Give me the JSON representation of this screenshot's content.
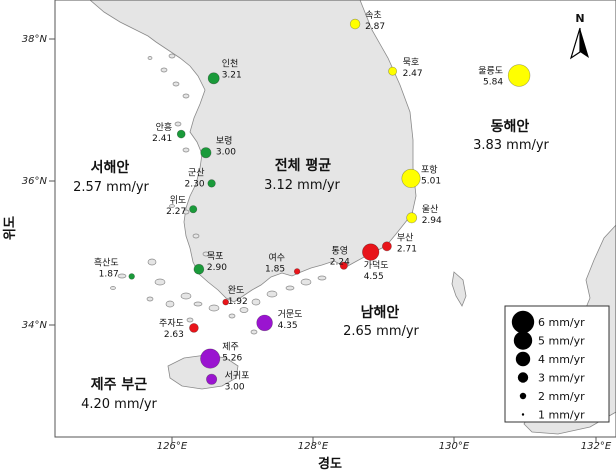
{
  "axes": {
    "x_title": "경도",
    "y_title": "위도",
    "x_ticks": [
      "126°E",
      "128°E",
      "130°E",
      "132°E"
    ],
    "y_ticks": [
      "38°N",
      "36°N",
      "34°N"
    ]
  },
  "north_arrow": {
    "letter": "N",
    "icon": "north-arrow-icon"
  },
  "regions": [
    {
      "id": "west",
      "name": "서해안",
      "rate": "2.57 mm/yr"
    },
    {
      "id": "total",
      "name": "전체 평균",
      "rate": "3.12 mm/yr"
    },
    {
      "id": "east",
      "name": "동해안",
      "rate": "3.83 mm/yr"
    },
    {
      "id": "south",
      "name": "남해안",
      "rate": "2.65 mm/yr"
    },
    {
      "id": "jeju",
      "name": "제주 부근",
      "rate": "4.20 mm/yr"
    }
  ],
  "colors": {
    "east": "#ffff00",
    "west": "#1a9a3a",
    "south": "#e8141a",
    "jeju": "#9a14d0",
    "land": "#e5e5e5",
    "sea": "#ffffff"
  },
  "stations": [
    {
      "name": "속초",
      "value": "2.87",
      "rate": 2.87,
      "region": "east",
      "lon": 128.59,
      "lat": 38.21
    },
    {
      "name": "묵호",
      "value": "2.47",
      "rate": 2.47,
      "region": "east",
      "lon": 129.12,
      "lat": 37.55
    },
    {
      "name": "울릉도",
      "value": "5.84",
      "rate": 5.84,
      "region": "east",
      "lon": 130.91,
      "lat": 37.49
    },
    {
      "name": "포항",
      "value": "5.01",
      "rate": 5.01,
      "region": "east",
      "lon": 129.38,
      "lat": 36.05
    },
    {
      "name": "울산",
      "value": "2.94",
      "rate": 2.94,
      "region": "east",
      "lon": 129.39,
      "lat": 35.5
    },
    {
      "name": "부산",
      "value": "2.71",
      "rate": 2.71,
      "region": "south",
      "lon": 129.04,
      "lat": 35.1
    },
    {
      "name": "가덕도",
      "value": "4.55",
      "rate": 4.55,
      "region": "south",
      "lon": 128.81,
      "lat": 35.02
    },
    {
      "name": "통영",
      "value": "2.24",
      "rate": 2.24,
      "region": "south",
      "lon": 128.43,
      "lat": 34.83
    },
    {
      "name": "여수",
      "value": "1.85",
      "rate": 1.85,
      "region": "south",
      "lon": 127.77,
      "lat": 34.75
    },
    {
      "name": "완도",
      "value": "1.92",
      "rate": 1.92,
      "region": "south",
      "lon": 126.76,
      "lat": 34.32
    },
    {
      "name": "거문도",
      "value": "4.35",
      "rate": 4.35,
      "region": "jeju",
      "lon": 127.31,
      "lat": 34.03
    },
    {
      "name": "주자도",
      "value": "2.63",
      "rate": 2.63,
      "region": "south",
      "lon": 126.31,
      "lat": 33.96
    },
    {
      "name": "제주",
      "value": "5.26",
      "rate": 5.26,
      "region": "jeju",
      "lon": 126.54,
      "lat": 33.53
    },
    {
      "name": "서귀포",
      "value": "3.00",
      "rate": 3.0,
      "region": "jeju",
      "lon": 126.56,
      "lat": 33.24
    },
    {
      "name": "인천",
      "value": "3.21",
      "rate": 3.21,
      "region": "west",
      "lon": 126.59,
      "lat": 37.45
    },
    {
      "name": "안흥",
      "value": "2.41",
      "rate": 2.41,
      "region": "west",
      "lon": 126.13,
      "lat": 36.67
    },
    {
      "name": "보령",
      "value": "3.00",
      "rate": 3.0,
      "region": "west",
      "lon": 126.48,
      "lat": 36.41
    },
    {
      "name": "군산",
      "value": "2.30",
      "rate": 2.3,
      "region": "west",
      "lon": 126.56,
      "lat": 35.98
    },
    {
      "name": "위도",
      "value": "2.27",
      "rate": 2.27,
      "region": "west",
      "lon": 126.3,
      "lat": 35.62
    },
    {
      "name": "목포",
      "value": "2.90",
      "rate": 2.9,
      "region": "west",
      "lon": 126.38,
      "lat": 34.78
    },
    {
      "name": "흑산도",
      "value": "1.87",
      "rate": 1.87,
      "region": "west",
      "lon": 125.43,
      "lat": 34.68
    }
  ],
  "legend": {
    "items": [
      {
        "label": "6 mm/yr",
        "rate": 6
      },
      {
        "label": "5 mm/yr",
        "rate": 5
      },
      {
        "label": "4 mm/yr",
        "rate": 4
      },
      {
        "label": "3 mm/yr",
        "rate": 3
      },
      {
        "label": "2 mm/yr",
        "rate": 2
      },
      {
        "label": "1 mm/yr",
        "rate": 1
      }
    ]
  }
}
